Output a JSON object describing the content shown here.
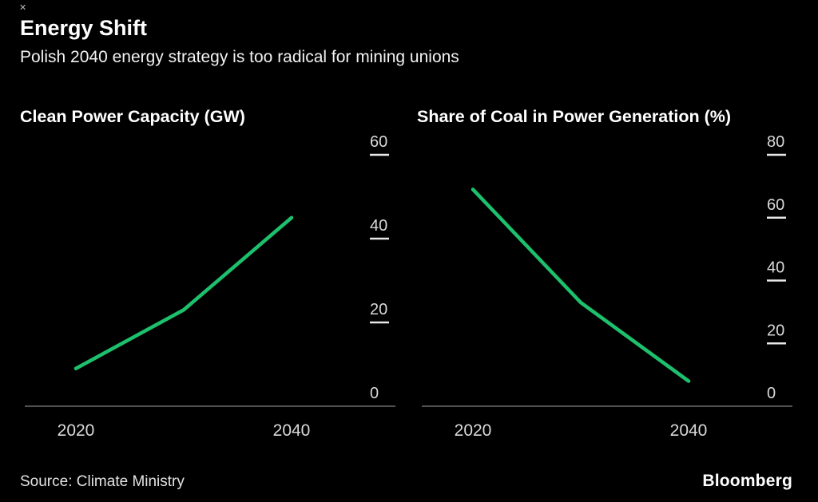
{
  "window": {
    "close_icon": "✕"
  },
  "header": {
    "title": "Energy Shift",
    "subtitle": "Polish 2040 energy strategy is too radical for mining unions"
  },
  "colors": {
    "background": "#000000",
    "line": "#1dc06c",
    "axis": "#6e6e6e",
    "tick_dash": "#e8e8e8",
    "tick_text": "#d9d9d9",
    "x_label_text": "#d9d9d9"
  },
  "chart_data": [
    {
      "type": "line",
      "title": "Clean Power Capacity (GW)",
      "x": [
        2020,
        2030,
        2040
      ],
      "values": [
        9,
        23,
        45
      ],
      "y_ticks": [
        0,
        20,
        40,
        60
      ],
      "ylim": [
        0,
        60
      ],
      "x_tick_positions": [
        2020,
        2040
      ],
      "x_tick_labels": [
        "2020",
        "2040"
      ],
      "grid": false,
      "legend": "none"
    },
    {
      "type": "line",
      "title": "Share of Coal in Power Generation (%)",
      "x": [
        2020,
        2030,
        2040
      ],
      "values": [
        69,
        33,
        8
      ],
      "y_ticks": [
        0,
        20,
        40,
        60,
        80
      ],
      "ylim": [
        0,
        80
      ],
      "x_tick_positions": [
        2020,
        2040
      ],
      "x_tick_labels": [
        "2020",
        "2040"
      ],
      "grid": false,
      "legend": "none"
    }
  ],
  "footer": {
    "source": "Source: Climate Ministry",
    "brand": "Bloomberg"
  }
}
